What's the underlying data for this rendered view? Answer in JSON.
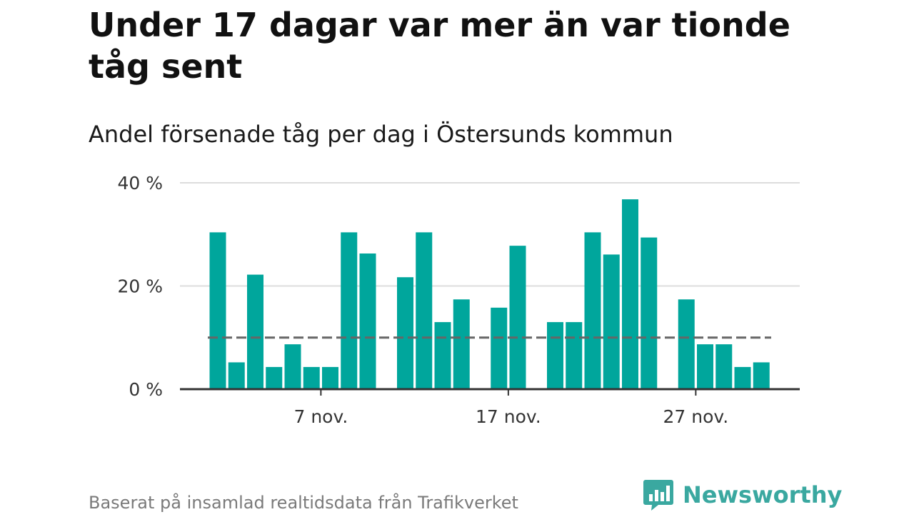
{
  "header": {
    "title": "Under 17 dagar var mer än var tionde tåg sent",
    "subtitle": "Andel försenade tåg per dag i Östersunds kommun"
  },
  "footer": {
    "source": "Baserat på insamlad realtidsdata från Trafikverket",
    "brand": "Newsworthy"
  },
  "colors": {
    "bar": "#00a69c",
    "reference_line": "#666666",
    "grid": "#dddddd",
    "axis": "#333333",
    "brand": "#3aa8a0"
  },
  "chart_data": {
    "type": "bar",
    "x": [
      "1 nov.",
      "2 nov.",
      "3 nov.",
      "4 nov.",
      "5 nov.",
      "6 nov.",
      "7 nov.",
      "8 nov.",
      "9 nov.",
      "10 nov.",
      "11 nov.",
      "12 nov.",
      "13 nov.",
      "14 nov.",
      "15 nov.",
      "16 nov.",
      "17 nov.",
      "18 nov.",
      "19 nov.",
      "20 nov.",
      "21 nov.",
      "22 nov.",
      "23 nov.",
      "24 nov.",
      "25 nov.",
      "26 nov.",
      "27 nov.",
      "28 nov.",
      "29 nov.",
      "30 nov."
    ],
    "values": [
      30.4,
      5.2,
      22.2,
      4.3,
      8.7,
      4.3,
      4.3,
      30.4,
      26.3,
      null,
      21.7,
      30.4,
      13.0,
      17.4,
      null,
      15.8,
      27.8,
      null,
      13.0,
      13.0,
      30.4,
      26.1,
      36.8,
      29.4,
      null,
      17.4,
      8.7,
      8.7,
      4.3,
      5.2
    ],
    "reference_value": 10,
    "ylim": [
      0,
      40
    ],
    "yticks": [
      0,
      20,
      40
    ],
    "ytick_labels": [
      "0 %",
      "20 %",
      "40 %"
    ],
    "xticks": [
      "7 nov.",
      "17 nov.",
      "27 nov."
    ],
    "grid": true
  }
}
